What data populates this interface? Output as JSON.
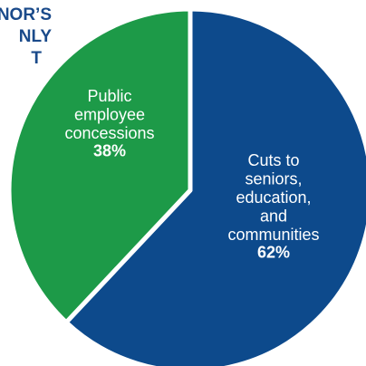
{
  "title_lines": [
    "NOR’S",
    "NLY",
    "T"
  ],
  "colors": {
    "title": "#1a4a8a",
    "green": "#1d9a48",
    "blue": "#0d4a8c",
    "border": "#ffffff"
  },
  "chart_data": {
    "type": "pie",
    "slices": [
      {
        "label_lines": [
          "Public",
          "employee",
          "concessions"
        ],
        "percent_label": "38%",
        "value": 38,
        "color": "#1d9a48"
      },
      {
        "label_lines": [
          "Cuts to",
          "seniors,",
          "education,",
          "and",
          "communities"
        ],
        "percent_label": "62%",
        "value": 62,
        "color": "#0d4a8c"
      }
    ]
  }
}
